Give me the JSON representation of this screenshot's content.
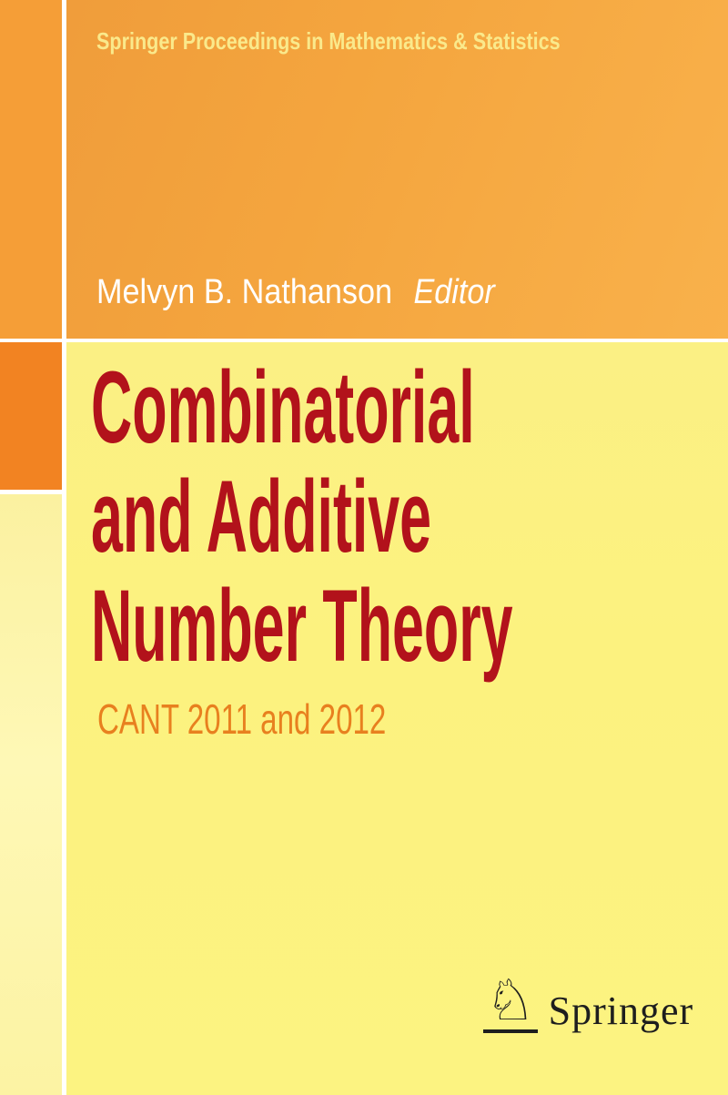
{
  "series": {
    "title": "Springer Proceedings in Mathematics & Statistics"
  },
  "author": {
    "name": "Melvyn B. Nathanson",
    "role": "Editor"
  },
  "book_title": {
    "line1": "Combinatorial",
    "line2": "and Additive",
    "line3": "Number Theory"
  },
  "subtitle": "CANT 2011 and 2012",
  "publisher": {
    "name": "Springer",
    "logo_glyph": "♘"
  },
  "colors": {
    "band_orange": "#F4A53E",
    "corner_orange": "#F59E37",
    "accent_dark_orange": "#F28322",
    "title_red": "#B2121B",
    "subtitle_orange": "#E8801F",
    "main_yellow": "#FCF27F",
    "pale_yellow_column": "#FDF6A8",
    "series_text_cream": "#FAE98B",
    "author_text": "#FFFFFF",
    "divider_white": "#FFFFFF",
    "logo_black": "#1E1E1E"
  }
}
